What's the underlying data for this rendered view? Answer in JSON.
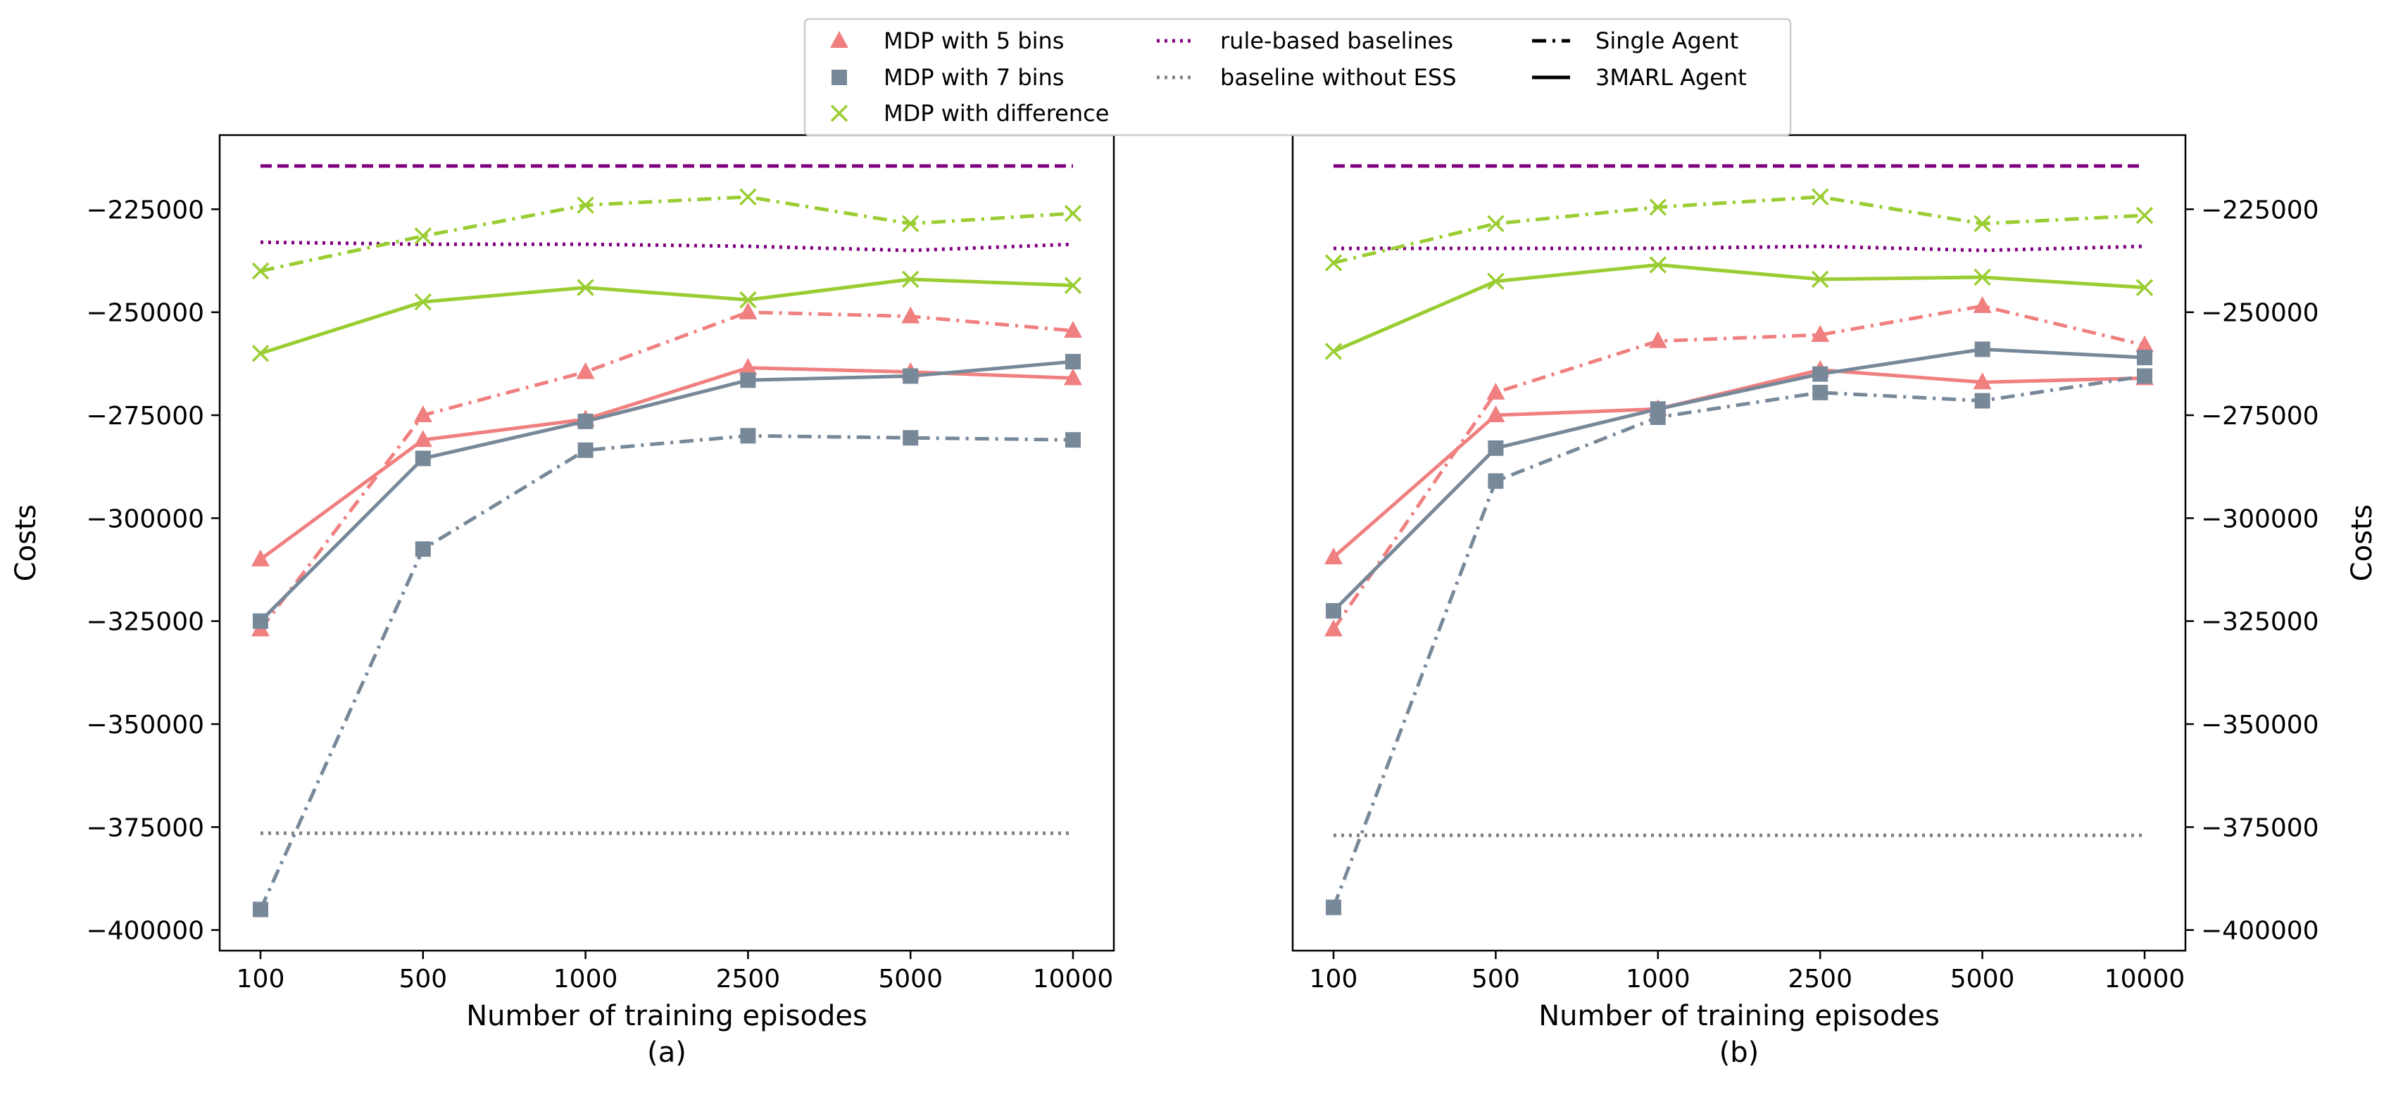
{
  "colors": {
    "mdp5": "#f08080",
    "mdp7": "#778899",
    "mdpdiff": "#9acd32",
    "rule": "#800080",
    "nobaseline": "#808080"
  },
  "legend": {
    "items": [
      {
        "label": "MDP with 5 bins",
        "kind": "triangle",
        "color": "#f08080"
      },
      {
        "label": "MDP with 7 bins",
        "kind": "square",
        "color": "#778899"
      },
      {
        "label": "MDP with difference",
        "kind": "x",
        "color": "#9acd32"
      },
      {
        "label": "rule-based baselines",
        "kind": "dotted",
        "color": "#800080"
      },
      {
        "label": "baseline without ESS",
        "kind": "dotted",
        "color": "#808080"
      },
      {
        "label": "Single Agent",
        "kind": "dashdot",
        "color": "#000000"
      },
      {
        "label": "3MARL Agent",
        "kind": "solid",
        "color": "#000000"
      }
    ]
  },
  "chart_data": [
    {
      "type": "line",
      "caption": "(a)",
      "xlabel": "Number of training episodes",
      "ylabel": "Costs",
      "ylabel_side": "left",
      "categories": [
        "100",
        "500",
        "1000",
        "2500",
        "5000",
        "10000"
      ],
      "ylim": [
        -405000,
        -207000
      ],
      "yticks": [
        -400000,
        -375000,
        -350000,
        -325000,
        -300000,
        -275000,
        -250000,
        -225000
      ],
      "series": [
        {
          "name": "MDP with 5 bins",
          "color": "#f08080",
          "marker": "triangle",
          "style": "solid",
          "values": [
            -310000,
            -281000,
            -276000,
            -263500,
            -264500,
            -266000
          ]
        },
        {
          "name": "MDP with 5 bins",
          "color": "#f08080",
          "marker": "triangle",
          "style": "dashdot",
          "values": [
            -327000,
            -275000,
            -264500,
            -250000,
            -251000,
            -254500
          ]
        },
        {
          "name": "MDP with 7 bins",
          "color": "#778899",
          "marker": "square",
          "style": "solid",
          "values": [
            -325000,
            -285500,
            -276500,
            -266500,
            -265500,
            -262000
          ]
        },
        {
          "name": "MDP with 7 bins",
          "color": "#778899",
          "marker": "square",
          "style": "dashdot",
          "values": [
            -395000,
            -307500,
            -283500,
            -280000,
            -280500,
            -281000
          ]
        },
        {
          "name": "MDP with difference",
          "color": "#9acd32",
          "marker": "x",
          "style": "solid",
          "values": [
            -260000,
            -247500,
            -244000,
            -247000,
            -242000,
            -243500
          ]
        },
        {
          "name": "MDP with difference",
          "color": "#9acd32",
          "marker": "x",
          "style": "dashdot",
          "values": [
            -240000,
            -231500,
            -224000,
            -222000,
            -228500,
            -226000
          ]
        }
      ],
      "reference_lines": [
        {
          "name": "rule-based baselines",
          "color": "#800080",
          "style": "dashed",
          "values": [
            -214500,
            -214500,
            -214500,
            -214500,
            -214500,
            -214500
          ]
        },
        {
          "name": "rule-based baselines",
          "color": "#800080",
          "style": "dotted",
          "values": [
            -233000,
            -233500,
            -233500,
            -234000,
            -235000,
            -233500
          ]
        },
        {
          "name": "baseline without ESS",
          "color": "#808080",
          "style": "dotted",
          "values": [
            -376500,
            -376500,
            -376500,
            -376500,
            -376500,
            -376500
          ]
        }
      ]
    },
    {
      "type": "line",
      "caption": "(b)",
      "xlabel": "Number of training episodes",
      "ylabel": "Costs",
      "ylabel_side": "right",
      "categories": [
        "100",
        "500",
        "1000",
        "2500",
        "5000",
        "10000"
      ],
      "ylim": [
        -405000,
        -207000
      ],
      "yticks": [
        -400000,
        -375000,
        -350000,
        -325000,
        -300000,
        -275000,
        -250000,
        -225000
      ],
      "series": [
        {
          "name": "MDP with 5 bins",
          "color": "#f08080",
          "marker": "triangle",
          "style": "solid",
          "values": [
            -309500,
            -275000,
            -273500,
            -264000,
            -267000,
            -266000
          ]
        },
        {
          "name": "MDP with 5 bins",
          "color": "#f08080",
          "marker": "triangle",
          "style": "dashdot",
          "values": [
            -327000,
            -269500,
            -257000,
            -255500,
            -248500,
            -258000
          ]
        },
        {
          "name": "MDP with 7 bins",
          "color": "#778899",
          "marker": "square",
          "style": "solid",
          "values": [
            -322500,
            -283000,
            -273500,
            -265000,
            -259000,
            -261000
          ]
        },
        {
          "name": "MDP with 7 bins",
          "color": "#778899",
          "marker": "square",
          "style": "dashdot",
          "values": [
            -394500,
            -291000,
            -275500,
            -269500,
            -271500,
            -265500
          ]
        },
        {
          "name": "MDP with difference",
          "color": "#9acd32",
          "marker": "x",
          "style": "solid",
          "values": [
            -259500,
            -242500,
            -238500,
            -242000,
            -241500,
            -244000
          ]
        },
        {
          "name": "MDP with difference",
          "color": "#9acd32",
          "marker": "x",
          "style": "dashdot",
          "values": [
            -238000,
            -228500,
            -224500,
            -222000,
            -228500,
            -226500
          ]
        }
      ],
      "reference_lines": [
        {
          "name": "rule-based baselines",
          "color": "#800080",
          "style": "dashed",
          "values": [
            -214500,
            -214500,
            -214500,
            -214500,
            -214500,
            -214500
          ]
        },
        {
          "name": "rule-based baselines",
          "color": "#800080",
          "style": "dotted",
          "values": [
            -234500,
            -234500,
            -234500,
            -234000,
            -235000,
            -234000
          ]
        },
        {
          "name": "baseline without ESS",
          "color": "#808080",
          "style": "dotted",
          "values": [
            -377000,
            -377000,
            -377000,
            -377000,
            -377000,
            -377000
          ]
        }
      ]
    }
  ]
}
